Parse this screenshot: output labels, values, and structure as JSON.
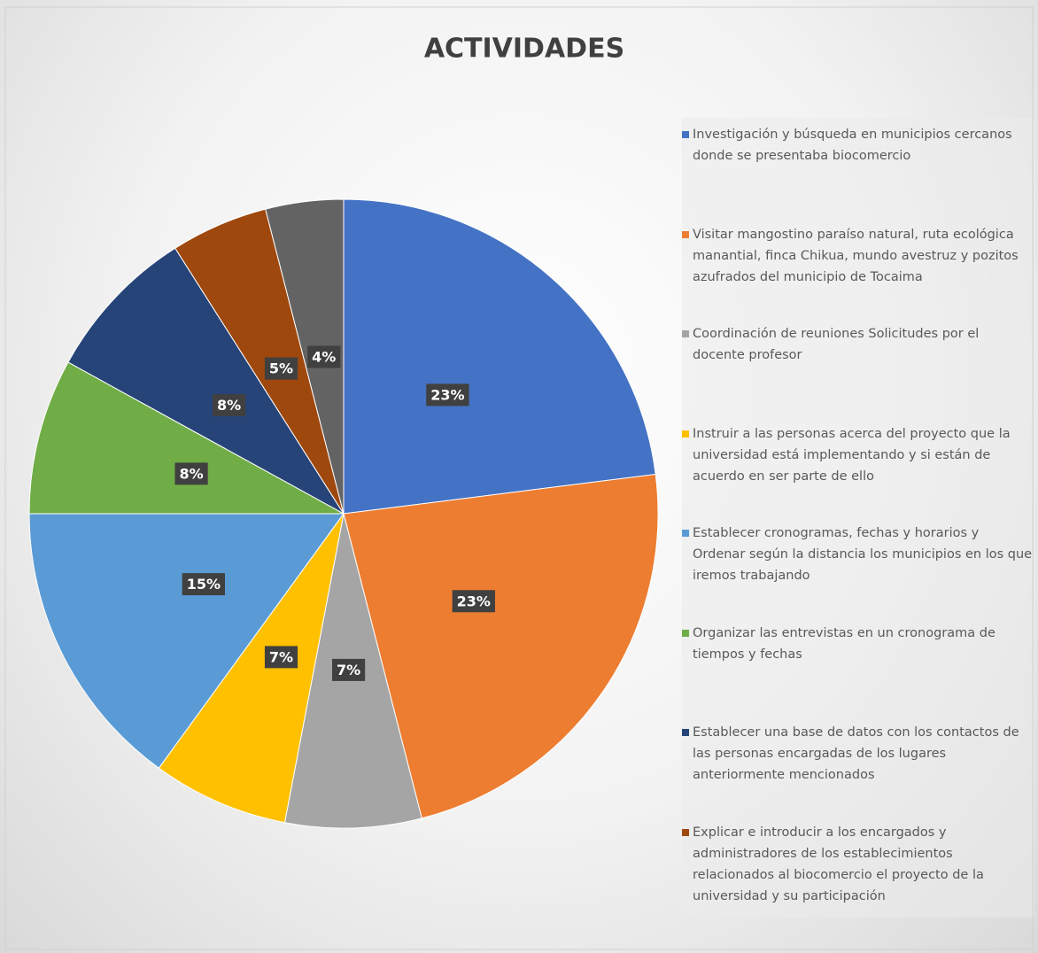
{
  "chart_data": {
    "type": "pie",
    "title": "ACTIVIDADES",
    "categories": [
      "Investigación y búsqueda en municipios cercanos donde se presentaba biocomercio",
      "Visitar mangostino paraíso natural, ruta ecológica manantial, finca Chikua, mundo avestruz y pozitos azufrados del municipio de Tocaima",
      "Coordinación de reuniones Solicitudes por el docente profesor",
      "Instruir a las personas acerca del proyecto que la universidad está implementando y si están de acuerdo en ser parte de ello",
      "Establecer cronogramas, fechas y horarios y Ordenar según la distancia los municipios en los que iremos trabajando",
      "Organizar las entrevistas en un cronograma de tiempos y fechas",
      "Establecer una base de datos con los contactos de las personas encargadas de los lugares anteriormente mencionados",
      "Explicar e introducir a los encargados y administradores de los establecimientos relacionados al biocomercio el proyecto de la universidad y su participación",
      null
    ],
    "values": [
      23,
      23,
      7,
      7,
      15,
      8,
      8,
      5,
      4
    ],
    "value_labels": [
      "23%",
      "23%",
      "7%",
      "7%",
      "15%",
      "8%",
      "8%",
      "5%",
      "4%"
    ],
    "colors": [
      "#4472c4",
      "#ed7d31",
      "#a5a5a5",
      "#ffc000",
      "#5b9bd5",
      "#70ad47",
      "#264478",
      "#9e480e",
      "#636363"
    ]
  }
}
